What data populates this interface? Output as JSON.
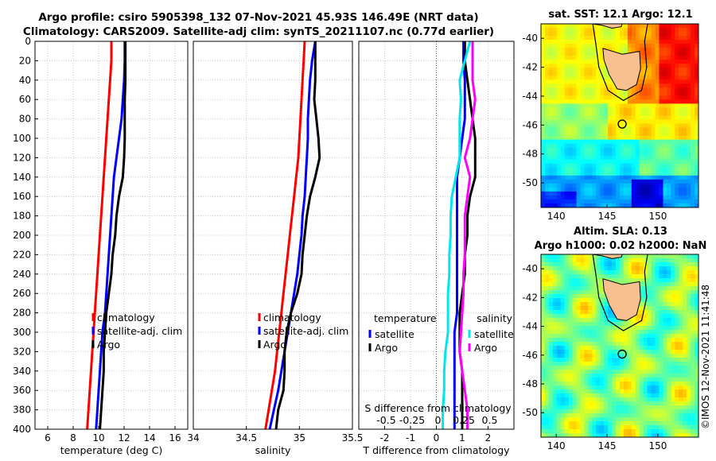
{
  "header": {
    "title_line1": "Argo profile: csiro 5905398_132 07-Nov-2021 45.93S 146.49E (NRT data)",
    "title_line2": "Climatology: CARS2009. Satellite-adj clim: synTS_20211107.nc (0.77d earlier)"
  },
  "map_sst": {
    "title": "sat. SST: 12.1 Argo: 12.1",
    "yticks": [
      "-40",
      "-42",
      "-44",
      "-46",
      "-48",
      "-50"
    ],
    "xticks": [
      "140",
      "145",
      "150"
    ]
  },
  "map_sla": {
    "title_line1": "Altim. SLA: 0.13",
    "title_line2": "Argo h1000: 0.02 h2000: NaN",
    "yticks": [
      "-40",
      "-42",
      "-44",
      "-46",
      "-48",
      "-50"
    ],
    "xticks": [
      "140",
      "145",
      "150"
    ]
  },
  "credit": "©IMOS 12-Nov-2021 11:41:48",
  "chart_data": [
    {
      "type": "line",
      "title": "",
      "xlabel": "temperature (deg C)",
      "ylabel": "",
      "xlim": [
        5,
        17
      ],
      "ylim": [
        400,
        0
      ],
      "xticks": [
        "6",
        "8",
        "10",
        "12",
        "14",
        "16"
      ],
      "yticks": [
        "0",
        "20",
        "40",
        "60",
        "80",
        "100",
        "120",
        "140",
        "160",
        "180",
        "200",
        "220",
        "240",
        "260",
        "280",
        "300",
        "320",
        "340",
        "360",
        "380",
        "400"
      ],
      "legend": [
        "climatology",
        "satellite-adj. clim",
        "Argo"
      ],
      "legend_position": "bottom-right",
      "series": [
        {
          "name": "climatology",
          "color": "#ff0000",
          "y": [
            0,
            20,
            40,
            60,
            80,
            100,
            120,
            140,
            160,
            180,
            200,
            220,
            240,
            260,
            280,
            300,
            320,
            340,
            360,
            380,
            400
          ],
          "x": [
            11.0,
            11.0,
            10.9,
            10.8,
            10.7,
            10.6,
            10.5,
            10.4,
            10.3,
            10.2,
            10.1,
            10.0,
            9.9,
            9.8,
            9.7,
            9.6,
            9.5,
            9.4,
            9.3,
            9.2,
            9.1
          ]
        },
        {
          "name": "satellite-adj. clim",
          "color": "#0000ff",
          "y": [
            0,
            20,
            40,
            60,
            80,
            100,
            120,
            140,
            160,
            180,
            200,
            220,
            240,
            260,
            280,
            300,
            320,
            340,
            360,
            380,
            400
          ],
          "x": [
            12.05,
            12.05,
            12.0,
            11.9,
            11.8,
            11.6,
            11.4,
            11.2,
            11.1,
            11.0,
            10.9,
            10.8,
            10.7,
            10.6,
            10.5,
            10.3,
            10.2,
            10.1,
            10.0,
            9.9,
            9.8
          ]
        },
        {
          "name": "Argo",
          "color": "#000000",
          "y": [
            0,
            20,
            40,
            60,
            80,
            100,
            120,
            140,
            160,
            180,
            200,
            220,
            240,
            260,
            280,
            300,
            320,
            340,
            360,
            380,
            400
          ],
          "x": [
            12.1,
            12.1,
            12.1,
            12.05,
            12.05,
            12.05,
            12.0,
            11.9,
            11.6,
            11.4,
            11.3,
            11.1,
            11.0,
            10.8,
            10.6,
            10.5,
            10.4,
            10.4,
            10.3,
            10.2,
            10.1
          ]
        }
      ]
    },
    {
      "type": "line",
      "xlabel": "salinity",
      "ylabel": "",
      "xlim": [
        34.0,
        35.5
      ],
      "ylim": [
        400,
        0
      ],
      "xticks": [
        "34",
        "34.5",
        "35",
        "35.5"
      ],
      "legend": [
        "climatology",
        "satellite-adj. clim",
        "Argo"
      ],
      "legend_position": "bottom-right",
      "series": [
        {
          "name": "climatology",
          "color": "#ff0000",
          "y": [
            0,
            20,
            40,
            60,
            80,
            100,
            120,
            140,
            160,
            180,
            200,
            220,
            240,
            260,
            280,
            300,
            320,
            340,
            360,
            380,
            400
          ],
          "x": [
            35.05,
            35.04,
            35.03,
            35.02,
            35.01,
            35.0,
            34.99,
            34.97,
            34.95,
            34.93,
            34.91,
            34.89,
            34.87,
            34.85,
            34.83,
            34.81,
            34.79,
            34.77,
            34.74,
            34.71,
            34.68
          ]
        },
        {
          "name": "satellite-adj. clim",
          "color": "#0000ff",
          "y": [
            0,
            20,
            40,
            60,
            80,
            100,
            120,
            140,
            160,
            180,
            200,
            220,
            240,
            260,
            280,
            300,
            320,
            340,
            360,
            380,
            400
          ],
          "x": [
            35.15,
            35.12,
            35.1,
            35.09,
            35.08,
            35.08,
            35.07,
            35.06,
            35.05,
            35.03,
            35.02,
            35.0,
            34.98,
            34.95,
            34.92,
            34.89,
            34.86,
            34.83,
            34.8,
            34.76,
            34.72
          ]
        },
        {
          "name": "Argo",
          "color": "#000000",
          "y": [
            0,
            20,
            40,
            60,
            80,
            100,
            120,
            140,
            160,
            180,
            200,
            220,
            240,
            260,
            280,
            300,
            320,
            340,
            360,
            380,
            400
          ],
          "x": [
            35.15,
            35.15,
            35.15,
            35.14,
            35.16,
            35.18,
            35.19,
            35.15,
            35.1,
            35.07,
            35.05,
            35.03,
            35.02,
            34.98,
            34.92,
            34.88,
            34.86,
            34.86,
            34.85,
            34.8,
            34.78
          ]
        }
      ]
    },
    {
      "type": "line",
      "xlabel": "T difference from climatology",
      "top_xlabel": "S difference from climatology",
      "ylabel": "",
      "xlim": [
        -3.0,
        3.0
      ],
      "ylim": [
        400,
        0
      ],
      "xticks": [
        "-2",
        "-1",
        "0",
        "1",
        "2"
      ],
      "top_xticks": [
        "-0.5",
        "-0.25",
        "0",
        "0.25",
        "0.5"
      ],
      "legend_temperature": {
        "title": "temperature",
        "items": [
          "satellite",
          "Argo"
        ]
      },
      "legend_salinity": {
        "title": "salinity",
        "items": [
          "satellite",
          "Argo"
        ]
      },
      "series": [
        {
          "name": "temperature satellite",
          "color": "#0000ff",
          "y": [
            0,
            20,
            40,
            60,
            80,
            100,
            120,
            140,
            160,
            180,
            200,
            220,
            240,
            260,
            280,
            300,
            320,
            340,
            360,
            380,
            400
          ],
          "x": [
            1.05,
            1.05,
            1.1,
            1.1,
            1.1,
            1.0,
            0.9,
            0.8,
            0.8,
            0.8,
            0.8,
            0.8,
            0.8,
            0.8,
            0.8,
            0.7,
            0.7,
            0.7,
            0.7,
            0.7,
            0.7
          ]
        },
        {
          "name": "temperature Argo",
          "color": "#000000",
          "y": [
            0,
            20,
            40,
            60,
            80,
            100,
            120,
            140,
            160,
            180,
            200,
            220,
            240,
            260,
            280,
            300,
            320,
            340,
            360,
            380,
            400
          ],
          "x": [
            1.1,
            1.1,
            1.2,
            1.3,
            1.4,
            1.5,
            1.5,
            1.5,
            1.3,
            1.2,
            1.2,
            1.1,
            1.1,
            1.0,
            0.9,
            0.9,
            0.9,
            1.0,
            1.0,
            1.0,
            1.0
          ]
        },
        {
          "name": "salinity satellite",
          "color": "#00e5ee",
          "y": [
            0,
            20,
            40,
            60,
            80,
            100,
            120,
            140,
            160,
            180,
            200,
            220,
            240,
            260,
            280,
            300,
            320,
            340,
            360,
            380,
            400
          ],
          "x": [
            1.3,
            1.1,
            0.9,
            0.95,
            0.9,
            0.9,
            0.9,
            0.75,
            0.6,
            0.55,
            0.55,
            0.5,
            0.5,
            0.45,
            0.45,
            0.45,
            0.35,
            0.3,
            0.3,
            0.25,
            0.25
          ]
        },
        {
          "name": "salinity Argo",
          "color": "#ff00ff",
          "y": [
            0,
            20,
            40,
            60,
            80,
            100,
            120,
            140,
            160,
            180,
            200,
            220,
            240,
            260,
            280,
            300,
            320,
            340,
            360,
            380,
            400
          ],
          "x": [
            1.4,
            1.4,
            1.4,
            1.5,
            1.4,
            1.3,
            1.1,
            1.3,
            1.2,
            1.1,
            1.1,
            1.1,
            1.05,
            1.05,
            1.0,
            0.95,
            0.9,
            1.0,
            1.1,
            1.2,
            1.2
          ]
        }
      ]
    }
  ]
}
